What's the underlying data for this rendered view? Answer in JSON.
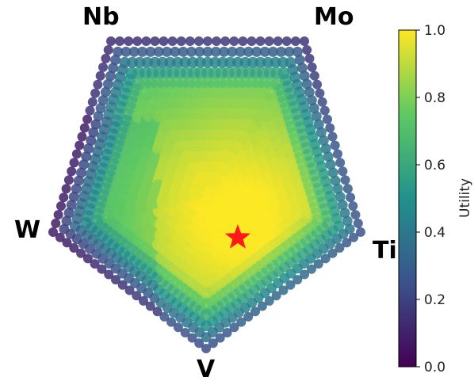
{
  "chart_data": {
    "type": "scatter",
    "projection": "pentagonal composition plot (5-element simplex)",
    "elements": [
      "Nb",
      "Mo",
      "Ti",
      "V",
      "W"
    ],
    "vertex_labels": {
      "nb": "Nb",
      "mo": "Mo",
      "ti": "Ti",
      "v": "V",
      "w": "W"
    },
    "colormap": "viridis",
    "colormap_stops": [
      "#440154",
      "#3b528b",
      "#21918c",
      "#5ec962",
      "#fde725"
    ],
    "star_color": "#ff1a1a",
    "colorbar": {
      "label": "Utility",
      "range": [
        0.0,
        1.0
      ],
      "ticks": [
        "0.0",
        "0.2",
        "0.4",
        "0.6",
        "0.8",
        "1.0"
      ]
    },
    "marker": {
      "best_point": "red star",
      "approx_utility": 1.0,
      "region": "interior, toward Ti-V edge"
    },
    "utility_summary": {
      "boundary_utility": "0.1-0.3 (dark purple/blue on outer ring)",
      "interior_utility": "0.6-0.95",
      "max_region": "center-right (near Mo-Ti-V interior)"
    }
  }
}
